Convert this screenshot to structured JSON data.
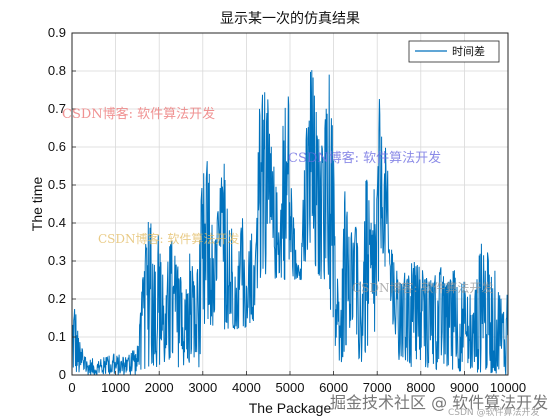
{
  "chart_data": {
    "type": "line",
    "title": "显示某一次的仿真结果",
    "xlabel": "The Package",
    "ylabel": "The time",
    "xlim": [
      0,
      10000
    ],
    "ylim": [
      0,
      0.9
    ],
    "xticks": [
      0,
      1000,
      2000,
      3000,
      4000,
      5000,
      6000,
      7000,
      8000,
      9000,
      10000
    ],
    "yticks": [
      0,
      0.1,
      0.2,
      0.3,
      0.4,
      0.5,
      0.6,
      0.7,
      0.8,
      0.9
    ],
    "legend_position": "top-right",
    "grid": true,
    "series": [
      {
        "name": "时间差",
        "color": "#0072BD",
        "envelope": {
          "x": [
            0,
            60,
            150,
            300,
            600,
            900,
            1200,
            1500,
            1650,
            1750,
            1800,
            1850,
            1900,
            2000,
            2150,
            2250,
            2400,
            2600,
            2700,
            2850,
            2950,
            3050,
            3150,
            3250,
            3350,
            3500,
            3650,
            3700,
            3750,
            3900,
            4000,
            4100,
            4200,
            4300,
            4400,
            4450,
            4550,
            4650,
            4750,
            4850,
            4950,
            5050,
            5150,
            5250,
            5350,
            5500,
            5600,
            5700,
            5800,
            5900,
            6000,
            6050,
            6150,
            6250,
            6400,
            6500,
            6650,
            6750,
            6850,
            6950,
            7050,
            7100,
            7200,
            7300,
            7400,
            7500,
            7650,
            7800,
            8000,
            8200,
            8400,
            8600,
            8800,
            9000,
            9200,
            9400,
            9600,
            9800,
            9950,
            10000
          ],
          "y": [
            0.22,
            0.24,
            0.1,
            0.05,
            0.04,
            0.06,
            0.05,
            0.08,
            0.3,
            0.42,
            0.45,
            0.3,
            0.35,
            0.38,
            0.2,
            0.4,
            0.3,
            0.22,
            0.33,
            0.25,
            0.45,
            0.6,
            0.55,
            0.3,
            0.5,
            0.57,
            0.35,
            0.56,
            0.2,
            0.45,
            0.25,
            0.4,
            0.3,
            0.75,
            0.88,
            0.8,
            0.62,
            0.55,
            0.42,
            0.72,
            0.83,
            0.5,
            0.3,
            0.35,
            0.62,
            0.86,
            0.7,
            0.6,
            0.7,
            0.83,
            0.6,
            0.38,
            0.12,
            0.52,
            0.38,
            0.42,
            0.2,
            0.55,
            0.4,
            0.54,
            0.73,
            0.65,
            0.6,
            0.45,
            0.3,
            0.25,
            0.28,
            0.3,
            0.3,
            0.25,
            0.3,
            0.25,
            0.3,
            0.25,
            0.2,
            0.38,
            0.3,
            0.25,
            0.2,
            0.26
          ]
        },
        "floor": {
          "x": [
            0,
            1500,
            1750,
            2950,
            3100,
            4200,
            4300,
            5800,
            5900,
            6000,
            6150,
            6400,
            6600,
            7000,
            7100,
            7300,
            7500,
            10000
          ],
          "y": [
            0.0,
            0.0,
            0.02,
            0.02,
            0.12,
            0.12,
            0.25,
            0.25,
            0.2,
            0.05,
            0.02,
            0.12,
            0.02,
            0.1,
            0.35,
            0.15,
            0.02,
            0.0
          ]
        }
      }
    ]
  },
  "watermarks": [
    "CSDN博客: 软件算法开发",
    "CSDN博客: 软件算法开发",
    "CSDN博客: 软件算法开发",
    "CSDN博客: 软件算法开发"
  ],
  "site_watermark": "掘金技术社区 @ 软件算法开发",
  "csdn_watermark": "CSDN @软件算法开发"
}
